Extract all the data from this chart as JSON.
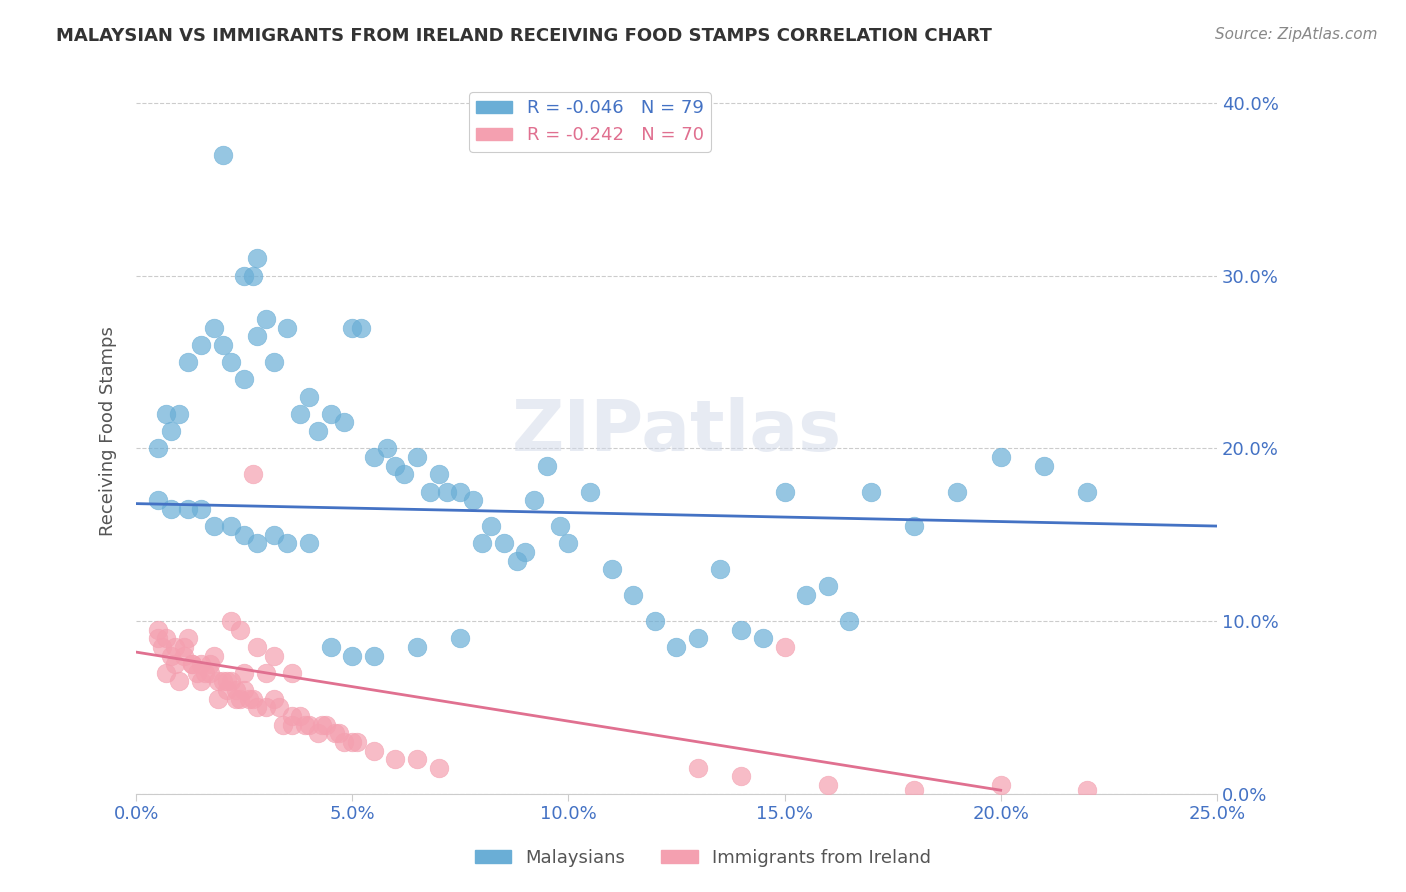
{
  "title": "MALAYSIAN VS IMMIGRANTS FROM IRELAND RECEIVING FOOD STAMPS CORRELATION CHART",
  "source": "Source: ZipAtlas.com",
  "xlabel_bottom": "",
  "ylabel": "Receiving Food Stamps",
  "x_tick_labels": [
    "0.0%",
    "25.0%"
  ],
  "y_tick_labels_right": [
    "40.0%",
    "30.0%",
    "20.0%",
    "10.0%"
  ],
  "legend_label1": "R = -0.046   N = 79",
  "legend_label2": "R = -0.242   N = 70",
  "legend_bottom1": "Malaysians",
  "legend_bottom2": "Immigrants from Ireland",
  "color_blue": "#6aaed6",
  "color_pink": "#f4a0b0",
  "color_title": "#333333",
  "color_axis_label": "#4472c4",
  "color_trend_blue": "#4472c4",
  "color_trend_pink": "#e07090",
  "watermark": "ZIPatlas",
  "xlim": [
    0.0,
    0.25
  ],
  "ylim": [
    0.0,
    0.42
  ],
  "y_ticks": [
    0.0,
    0.1,
    0.2,
    0.3,
    0.4
  ],
  "x_ticks": [
    0.0,
    0.05,
    0.1,
    0.15,
    0.2,
    0.25
  ],
  "blue_scatter_x": [
    0.02,
    0.025,
    0.027,
    0.028,
    0.005,
    0.007,
    0.008,
    0.01,
    0.012,
    0.015,
    0.018,
    0.02,
    0.022,
    0.025,
    0.028,
    0.03,
    0.032,
    0.035,
    0.038,
    0.04,
    0.042,
    0.045,
    0.048,
    0.05,
    0.052,
    0.055,
    0.058,
    0.06,
    0.062,
    0.065,
    0.068,
    0.07,
    0.072,
    0.075,
    0.078,
    0.08,
    0.082,
    0.085,
    0.088,
    0.09,
    0.092,
    0.095,
    0.098,
    0.1,
    0.105,
    0.11,
    0.115,
    0.12,
    0.125,
    0.13,
    0.135,
    0.14,
    0.145,
    0.15,
    0.155,
    0.16,
    0.165,
    0.17,
    0.18,
    0.19,
    0.2,
    0.21,
    0.22,
    0.005,
    0.008,
    0.012,
    0.015,
    0.018,
    0.022,
    0.025,
    0.028,
    0.032,
    0.035,
    0.04,
    0.045,
    0.05,
    0.055,
    0.065,
    0.075
  ],
  "blue_scatter_y": [
    0.37,
    0.3,
    0.3,
    0.31,
    0.2,
    0.22,
    0.21,
    0.22,
    0.25,
    0.26,
    0.27,
    0.26,
    0.25,
    0.24,
    0.265,
    0.275,
    0.25,
    0.27,
    0.22,
    0.23,
    0.21,
    0.22,
    0.215,
    0.27,
    0.27,
    0.195,
    0.2,
    0.19,
    0.185,
    0.195,
    0.175,
    0.185,
    0.175,
    0.175,
    0.17,
    0.145,
    0.155,
    0.145,
    0.135,
    0.14,
    0.17,
    0.19,
    0.155,
    0.145,
    0.175,
    0.13,
    0.115,
    0.1,
    0.085,
    0.09,
    0.13,
    0.095,
    0.09,
    0.175,
    0.115,
    0.12,
    0.1,
    0.175,
    0.155,
    0.175,
    0.195,
    0.19,
    0.175,
    0.17,
    0.165,
    0.165,
    0.165,
    0.155,
    0.155,
    0.15,
    0.145,
    0.15,
    0.145,
    0.145,
    0.085,
    0.08,
    0.08,
    0.085,
    0.09
  ],
  "pink_scatter_x": [
    0.005,
    0.006,
    0.007,
    0.008,
    0.009,
    0.01,
    0.011,
    0.012,
    0.013,
    0.014,
    0.015,
    0.016,
    0.017,
    0.018,
    0.019,
    0.02,
    0.021,
    0.022,
    0.023,
    0.024,
    0.025,
    0.026,
    0.027,
    0.028,
    0.03,
    0.032,
    0.034,
    0.036,
    0.038,
    0.04,
    0.042,
    0.044,
    0.046,
    0.048,
    0.05,
    0.055,
    0.06,
    0.065,
    0.07,
    0.005,
    0.007,
    0.009,
    0.011,
    0.013,
    0.015,
    0.017,
    0.019,
    0.021,
    0.023,
    0.025,
    0.027,
    0.03,
    0.033,
    0.036,
    0.039,
    0.043,
    0.047,
    0.051,
    0.022,
    0.024,
    0.028,
    0.032,
    0.036,
    0.14,
    0.16,
    0.18,
    0.2,
    0.22,
    0.13,
    0.15
  ],
  "pink_scatter_y": [
    0.09,
    0.085,
    0.07,
    0.08,
    0.075,
    0.065,
    0.085,
    0.09,
    0.075,
    0.07,
    0.065,
    0.07,
    0.075,
    0.08,
    0.055,
    0.065,
    0.06,
    0.065,
    0.055,
    0.055,
    0.07,
    0.055,
    0.055,
    0.05,
    0.05,
    0.055,
    0.04,
    0.04,
    0.045,
    0.04,
    0.035,
    0.04,
    0.035,
    0.03,
    0.03,
    0.025,
    0.02,
    0.02,
    0.015,
    0.095,
    0.09,
    0.085,
    0.08,
    0.075,
    0.075,
    0.07,
    0.065,
    0.065,
    0.06,
    0.06,
    0.185,
    0.07,
    0.05,
    0.045,
    0.04,
    0.04,
    0.035,
    0.03,
    0.1,
    0.095,
    0.085,
    0.08,
    0.07,
    0.01,
    0.005,
    0.002,
    0.005,
    0.002,
    0.015,
    0.085
  ],
  "blue_trend_x": [
    0.0,
    0.25
  ],
  "blue_trend_y": [
    0.168,
    0.155
  ],
  "pink_trend_x": [
    0.0,
    0.2
  ],
  "pink_trend_y": [
    0.082,
    0.002
  ]
}
